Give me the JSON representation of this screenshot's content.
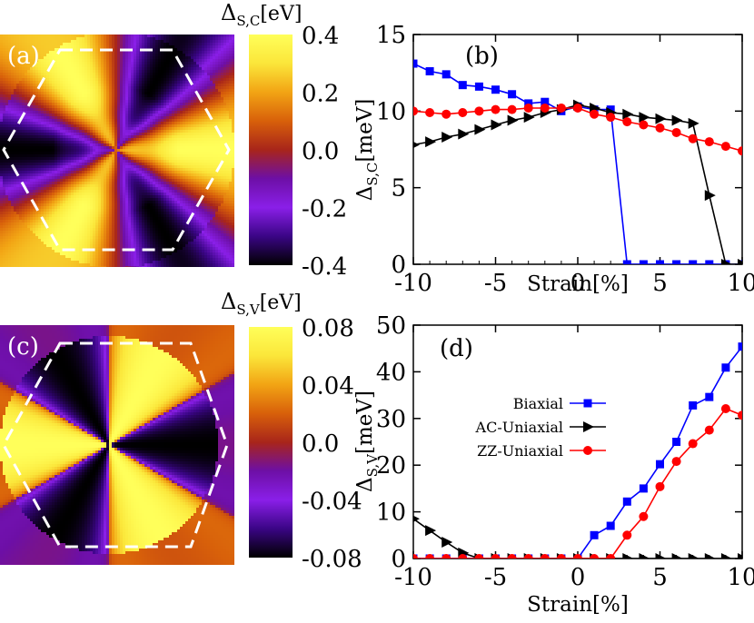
{
  "heatmaps": [
    {
      "panel_label": "(a)",
      "cbar_title_main": "Δ",
      "cbar_title_sub": "S,C",
      "cbar_title_unit": "[eV]",
      "cbar_ticks": [
        "0.4",
        "0.2",
        "0.0",
        "-0.2",
        "-0.4"
      ],
      "cbar_range": [
        -0.4,
        0.4
      ],
      "colormap": [
        "#000000",
        "#3a0585",
        "#8a1fe8",
        "#6d0fa6",
        "#a8251a",
        "#d8600a",
        "#f2a414",
        "#fbe63a",
        "#ffff5a"
      ]
    },
    {
      "panel_label": "(c)",
      "cbar_title_main": "Δ",
      "cbar_title_sub": "S,V",
      "cbar_title_unit": "[eV]",
      "cbar_ticks": [
        "0.08",
        "0.04",
        "0.0",
        "-0.04",
        "-0.08"
      ],
      "cbar_range": [
        -0.08,
        0.08
      ],
      "colormap": [
        "#000000",
        "#3a0585",
        "#8a1fe8",
        "#6d0fa6",
        "#a8251a",
        "#d8600a",
        "#f2a414",
        "#fbe63a",
        "#ffff5a"
      ]
    }
  ],
  "chart_data": [
    {
      "type": "line",
      "panel_label": "(b)",
      "title": "",
      "xlabel": "Strain[%]",
      "ylabel_main": "Δ",
      "ylabel_sub": "S,C",
      "ylabel_unit": "[meV]",
      "xlim": [
        -10,
        10
      ],
      "ylim": [
        0,
        15
      ],
      "xticks": [
        -10,
        -5,
        0,
        5,
        10
      ],
      "yticks": [
        0,
        5,
        10,
        15
      ],
      "series": [
        {
          "name": "Biaxial",
          "color": "#0000ff",
          "marker": "square",
          "x": [
            -10,
            -9,
            -8,
            -7,
            -6,
            -5,
            -4,
            -3,
            -2,
            -1,
            0,
            1,
            2,
            3,
            4,
            5,
            6,
            7,
            8,
            9,
            10
          ],
          "y": [
            13.1,
            12.6,
            12.4,
            11.7,
            11.6,
            11.4,
            11.1,
            10.5,
            10.6,
            10.0,
            10.3,
            10.1,
            10.1,
            0,
            0,
            0,
            0,
            0,
            0,
            0,
            0
          ]
        },
        {
          "name": "AC-Uniaxial",
          "color": "#000000",
          "marker": "triangle-right",
          "x": [
            -10,
            -9,
            -8,
            -7,
            -6,
            -5,
            -4,
            -3,
            -2,
            -1,
            0,
            1,
            2,
            3,
            4,
            5,
            6,
            7,
            8,
            9,
            10
          ],
          "y": [
            7.8,
            8.0,
            8.3,
            8.5,
            8.8,
            9.1,
            9.4,
            9.6,
            9.9,
            10.1,
            10.4,
            10.2,
            9.9,
            9.8,
            9.6,
            9.5,
            9.4,
            9.2,
            4.5,
            0,
            0
          ]
        },
        {
          "name": "ZZ-Uniaxial",
          "color": "#ff0000",
          "marker": "circle",
          "x": [
            -10,
            -9,
            -8,
            -7,
            -6,
            -5,
            -4,
            -3,
            -2,
            -1,
            0,
            1,
            2,
            3,
            4,
            5,
            6,
            7,
            8,
            9,
            10
          ],
          "y": [
            10.0,
            9.9,
            9.8,
            9.9,
            10.0,
            10.1,
            10.1,
            10.2,
            10.2,
            10.2,
            10.2,
            9.8,
            9.6,
            9.3,
            9.1,
            8.9,
            8.6,
            8.2,
            8.0,
            7.7,
            7.4
          ]
        }
      ]
    },
    {
      "type": "line",
      "panel_label": "(d)",
      "title": "",
      "xlabel": "Strain[%]",
      "ylabel_main": "Δ",
      "ylabel_sub": "S,V",
      "ylabel_unit": "[meV]",
      "xlim": [
        -10,
        10
      ],
      "ylim": [
        0,
        50
      ],
      "xticks": [
        -10,
        -5,
        0,
        5,
        10
      ],
      "yticks": [
        0,
        10,
        20,
        30,
        40,
        50
      ],
      "legend": {
        "position": "center-left",
        "entries": [
          "Biaxial",
          "AC-Uniaxial",
          "ZZ-Uniaxial"
        ]
      },
      "series": [
        {
          "name": "Biaxial",
          "color": "#0000ff",
          "marker": "square",
          "x": [
            -10,
            -9,
            -8,
            -7,
            -6,
            -5,
            -4,
            -3,
            -2,
            -1,
            0,
            1,
            2,
            3,
            4,
            5,
            6,
            7,
            8,
            9,
            10
          ],
          "y": [
            0,
            0,
            0,
            0,
            0,
            0,
            0,
            0,
            0,
            0,
            0,
            5.0,
            7.0,
            12.2,
            15.0,
            20.2,
            25.0,
            32.8,
            34.6,
            40.9,
            45.4
          ]
        },
        {
          "name": "AC-Uniaxial",
          "color": "#000000",
          "marker": "triangle-right",
          "x": [
            -10,
            -9,
            -8,
            -7,
            -6,
            -5,
            -4,
            -3,
            -2,
            -1,
            0,
            1,
            2,
            3,
            4,
            5,
            6,
            7,
            8,
            9,
            10
          ],
          "y": [
            8.5,
            6.0,
            3.5,
            1.2,
            0,
            0,
            0,
            0,
            0,
            0,
            0,
            0,
            0,
            0,
            0,
            0,
            0,
            0,
            0,
            0,
            0
          ]
        },
        {
          "name": "ZZ-Uniaxial",
          "color": "#ff0000",
          "marker": "circle",
          "x": [
            -10,
            -9,
            -8,
            -7,
            -6,
            -5,
            -4,
            -3,
            -2,
            -1,
            0,
            1,
            2,
            3,
            4,
            5,
            6,
            7,
            8,
            9,
            10
          ],
          "y": [
            0,
            0,
            0,
            0,
            0,
            0,
            0,
            0,
            0,
            0,
            0,
            0,
            0,
            5.0,
            9.0,
            15.4,
            20.8,
            24.6,
            27.5,
            32.1,
            30.7
          ]
        }
      ]
    }
  ]
}
